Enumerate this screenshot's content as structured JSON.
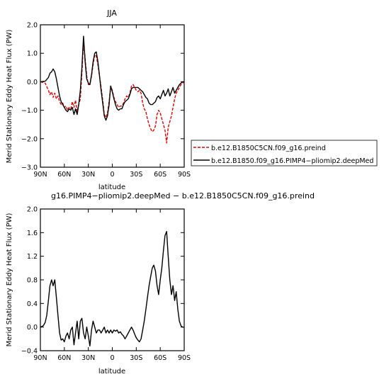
{
  "chart_data": [
    {
      "type": "line",
      "title": "JJA",
      "xlabel": "latitude",
      "ylabel": "Merid Stationary Eddy Heat Flux (PW)",
      "xlim": [
        90,
        -90
      ],
      "ylim": [
        -3.0,
        2.0
      ],
      "x_ticks": [
        90,
        60,
        30,
        0,
        -30,
        -60,
        -90
      ],
      "x_tick_labels": [
        "90N",
        "60N",
        "30N",
        "0",
        "30S",
        "60S",
        "90S"
      ],
      "y_ticks": [
        2.0,
        1.0,
        0.0,
        -1.0,
        -2.0,
        -3.0
      ],
      "y_tick_labels": [
        "2.0",
        "1.0",
        "0.0",
        "−1.0",
        "−2.0",
        "−3.0"
      ],
      "legend": "right",
      "series": [
        {
          "name": "b.e12.B1850C5CN.f09_g16.preind",
          "color": "#dd0000",
          "style": "dashed",
          "x": [
            90,
            84,
            80,
            78,
            76,
            74,
            72,
            70,
            68,
            66,
            64,
            62,
            60,
            58,
            56,
            54,
            52,
            50,
            48,
            46,
            44,
            42,
            40,
            38,
            36,
            34,
            32,
            30,
            28,
            26,
            24,
            22,
            20,
            18,
            16,
            14,
            12,
            10,
            8,
            6,
            4,
            2,
            0,
            -2,
            -4,
            -6,
            -8,
            -10,
            -12,
            -14,
            -16,
            -18,
            -20,
            -22,
            -24,
            -26,
            -28,
            -30,
            -32,
            -34,
            -36,
            -38,
            -40,
            -42,
            -44,
            -46,
            -48,
            -50,
            -52,
            -54,
            -56,
            -58,
            -60,
            -62,
            -64,
            -66,
            -68,
            -70,
            -72,
            -74,
            -76,
            -78,
            -80,
            -82,
            -84,
            -86,
            -88,
            -90
          ],
          "y": [
            0.0,
            -0.05,
            -0.3,
            -0.45,
            -0.35,
            -0.55,
            -0.4,
            -0.6,
            -0.5,
            -0.7,
            -0.8,
            -0.75,
            -0.9,
            -0.85,
            -1.0,
            -0.9,
            -0.95,
            -0.7,
            -0.9,
            -0.65,
            -1.05,
            -0.8,
            -0.6,
            0.3,
            1.4,
            0.8,
            0.2,
            -0.1,
            -0.1,
            0.2,
            0.6,
            0.95,
            0.9,
            0.6,
            0.2,
            -0.2,
            -0.65,
            -1.15,
            -1.25,
            -1.1,
            -0.7,
            -0.15,
            -0.3,
            -0.55,
            -0.7,
            -0.8,
            -0.9,
            -0.85,
            -0.85,
            -0.75,
            -0.6,
            -0.5,
            -0.55,
            -0.4,
            -0.15,
            -0.1,
            -0.2,
            -0.3,
            -0.35,
            -0.3,
            -0.4,
            -0.75,
            -0.95,
            -1.05,
            -1.3,
            -1.5,
            -1.65,
            -1.75,
            -1.7,
            -1.55,
            -1.15,
            -1.0,
            -1.1,
            -1.3,
            -1.5,
            -1.7,
            -2.15,
            -1.6,
            -1.4,
            -1.2,
            -0.9,
            -0.6,
            -0.4,
            -0.3,
            -0.2,
            -0.1,
            -0.05,
            0.0
          ]
        },
        {
          "name": "b.e12.B1850.f09_g16.PIMP4−pliomip2.deepMed",
          "color": "#000000",
          "style": "solid",
          "x": [
            90,
            84,
            80,
            78,
            76,
            74,
            72,
            70,
            68,
            66,
            64,
            62,
            60,
            58,
            56,
            54,
            52,
            50,
            48,
            46,
            44,
            42,
            40,
            38,
            36,
            34,
            32,
            30,
            28,
            26,
            24,
            22,
            20,
            18,
            16,
            14,
            12,
            10,
            8,
            6,
            4,
            2,
            0,
            -2,
            -4,
            -6,
            -8,
            -10,
            -12,
            -14,
            -16,
            -18,
            -20,
            -22,
            -24,
            -26,
            -28,
            -30,
            -32,
            -34,
            -36,
            -38,
            -40,
            -42,
            -44,
            -46,
            -48,
            -50,
            -52,
            -54,
            -56,
            -58,
            -60,
            -62,
            -64,
            -66,
            -68,
            -70,
            -72,
            -74,
            -76,
            -78,
            -80,
            -82,
            -84,
            -86,
            -88,
            -90
          ],
          "y": [
            0.0,
            0.02,
            0.15,
            0.3,
            0.35,
            0.45,
            0.35,
            0.1,
            -0.2,
            -0.5,
            -0.7,
            -0.8,
            -0.9,
            -1.0,
            -1.05,
            -0.95,
            -1.0,
            -0.9,
            -1.15,
            -0.95,
            -1.15,
            -0.8,
            -0.3,
            0.5,
            1.6,
            0.7,
            0.1,
            -0.05,
            -0.1,
            0.25,
            0.7,
            1.0,
            1.05,
            0.7,
            0.2,
            -0.3,
            -0.75,
            -1.2,
            -1.35,
            -1.2,
            -0.8,
            -0.15,
            -0.35,
            -0.6,
            -0.8,
            -0.95,
            -1.0,
            -0.95,
            -0.95,
            -0.8,
            -0.7,
            -0.65,
            -0.6,
            -0.45,
            -0.25,
            -0.2,
            -0.2,
            -0.2,
            -0.2,
            -0.25,
            -0.3,
            -0.35,
            -0.45,
            -0.55,
            -0.6,
            -0.75,
            -0.8,
            -0.8,
            -0.75,
            -0.7,
            -0.55,
            -0.5,
            -0.6,
            -0.45,
            -0.3,
            -0.5,
            -0.4,
            -0.25,
            -0.5,
            -0.35,
            -0.2,
            -0.4,
            -0.3,
            -0.2,
            -0.1,
            -0.05,
            0.0,
            0.0
          ]
        }
      ]
    },
    {
      "type": "line",
      "title": "g16.PIMP4−pliomip2.deepMed − b.e12.B1850C5CN.f09_g16.preind",
      "xlabel": "latitude",
      "ylabel": "Merid Stationary Eddy Heat Flux (PW)",
      "xlim": [
        90,
        -90
      ],
      "ylim": [
        -0.4,
        2.0
      ],
      "x_ticks": [
        90,
        60,
        30,
        0,
        -30,
        -60,
        -90
      ],
      "x_tick_labels": [
        "90N",
        "60N",
        "30N",
        "0",
        "30S",
        "60S",
        "90S"
      ],
      "y_ticks": [
        2.0,
        1.6,
        1.2,
        0.8,
        0.4,
        0.0,
        -0.4
      ],
      "y_tick_labels": [
        "2.0",
        "1.6",
        "1.2",
        "0.8",
        "0.4",
        "0.0",
        "−0.4"
      ],
      "series": [
        {
          "color": "#000000",
          "style": "solid",
          "x": [
            90,
            88,
            86,
            84,
            82,
            80,
            78,
            76,
            74,
            72,
            70,
            68,
            66,
            64,
            62,
            60,
            58,
            56,
            54,
            52,
            50,
            48,
            46,
            44,
            42,
            40,
            38,
            36,
            34,
            32,
            30,
            28,
            26,
            24,
            22,
            20,
            18,
            16,
            14,
            12,
            10,
            8,
            6,
            4,
            2,
            0,
            -2,
            -4,
            -6,
            -8,
            -10,
            -12,
            -14,
            -16,
            -18,
            -20,
            -22,
            -24,
            -26,
            -28,
            -30,
            -32,
            -34,
            -36,
            -38,
            -40,
            -42,
            -44,
            -46,
            -48,
            -50,
            -52,
            -54,
            -56,
            -58,
            -60,
            -62,
            -64,
            -66,
            -68,
            -70,
            -72,
            -74,
            -76,
            -78,
            -80,
            -82,
            -84,
            -86,
            -88,
            -90
          ],
          "y": [
            0.0,
            0.01,
            0.03,
            0.08,
            0.2,
            0.45,
            0.7,
            0.8,
            0.7,
            0.8,
            0.5,
            0.2,
            -0.1,
            -0.22,
            -0.2,
            -0.25,
            -0.15,
            -0.1,
            -0.2,
            -0.05,
            0.0,
            -0.3,
            -0.1,
            0.1,
            -0.2,
            0.1,
            0.15,
            -0.1,
            -0.2,
            0.0,
            -0.15,
            -0.32,
            -0.05,
            0.1,
            0.0,
            -0.1,
            -0.05,
            -0.05,
            -0.1,
            -0.05,
            0.0,
            -0.1,
            -0.05,
            -0.1,
            -0.05,
            -0.1,
            -0.05,
            -0.07,
            -0.05,
            -0.1,
            -0.08,
            -0.12,
            -0.15,
            -0.2,
            -0.15,
            -0.1,
            -0.05,
            0.0,
            -0.05,
            -0.12,
            -0.18,
            -0.22,
            -0.25,
            -0.2,
            -0.05,
            0.1,
            0.3,
            0.5,
            0.7,
            0.85,
            1.0,
            1.05,
            0.95,
            0.7,
            0.55,
            0.8,
            1.0,
            1.3,
            1.55,
            1.62,
            1.2,
            0.8,
            0.55,
            0.7,
            0.45,
            0.6,
            0.3,
            0.1,
            0.02,
            0.0,
            0.0
          ]
        }
      ]
    }
  ]
}
